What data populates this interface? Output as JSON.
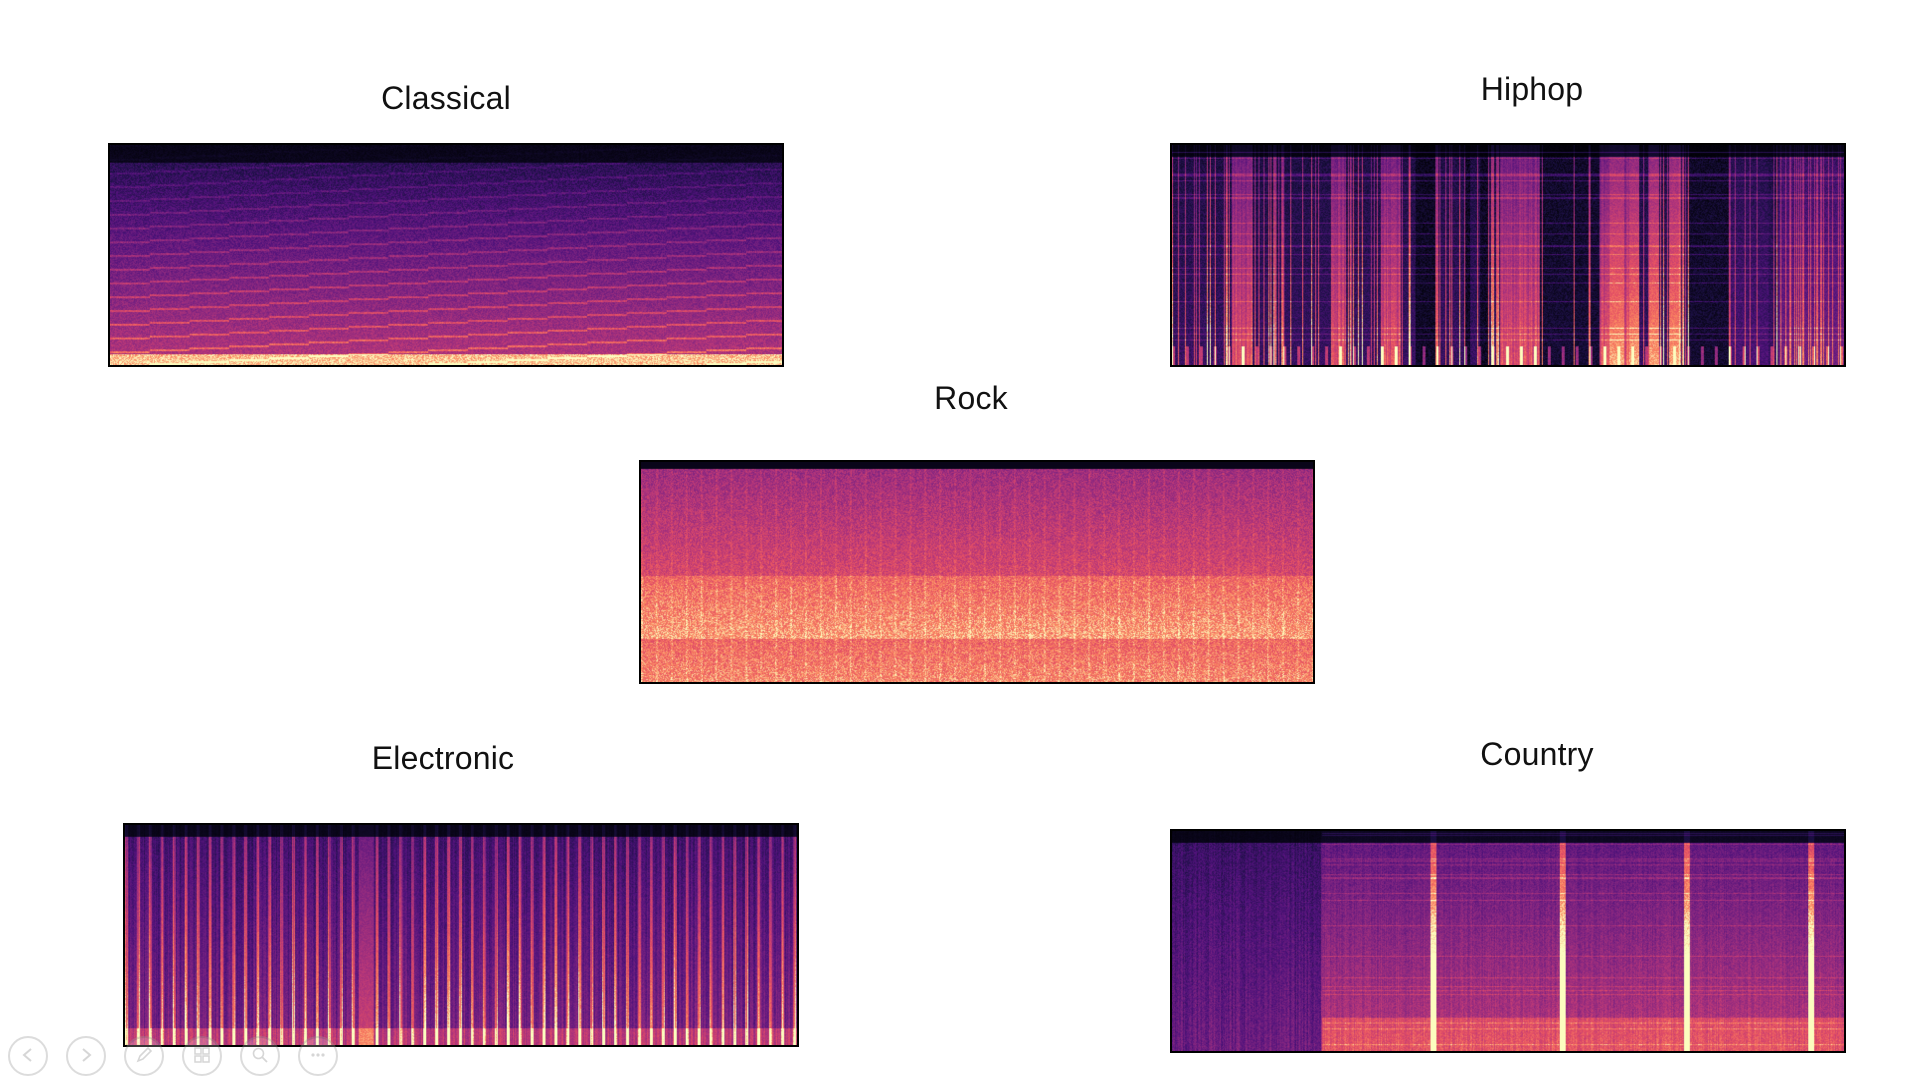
{
  "slide": {
    "genres": [
      {
        "id": "classical",
        "title": "Classical",
        "colormap": "magma",
        "pattern": "classical"
      },
      {
        "id": "hiphop",
        "title": "Hiphop",
        "colormap": "magma",
        "pattern": "hiphop"
      },
      {
        "id": "rock",
        "title": "Rock",
        "colormap": "magma",
        "pattern": "rock"
      },
      {
        "id": "electronic",
        "title": "Electronic",
        "colormap": "magma",
        "pattern": "electronic"
      },
      {
        "id": "country",
        "title": "Country",
        "colormap": "magma",
        "pattern": "country"
      }
    ]
  },
  "toolbar": {
    "buttons": [
      {
        "icon": "previous-slide-icon"
      },
      {
        "icon": "next-slide-icon"
      },
      {
        "icon": "pen-icon"
      },
      {
        "icon": "slides-grid-icon"
      },
      {
        "icon": "zoom-icon"
      },
      {
        "icon": "more-options-icon"
      }
    ]
  },
  "colors": {
    "background": "#ffffff",
    "text": "#111111",
    "frame": "#000000"
  }
}
